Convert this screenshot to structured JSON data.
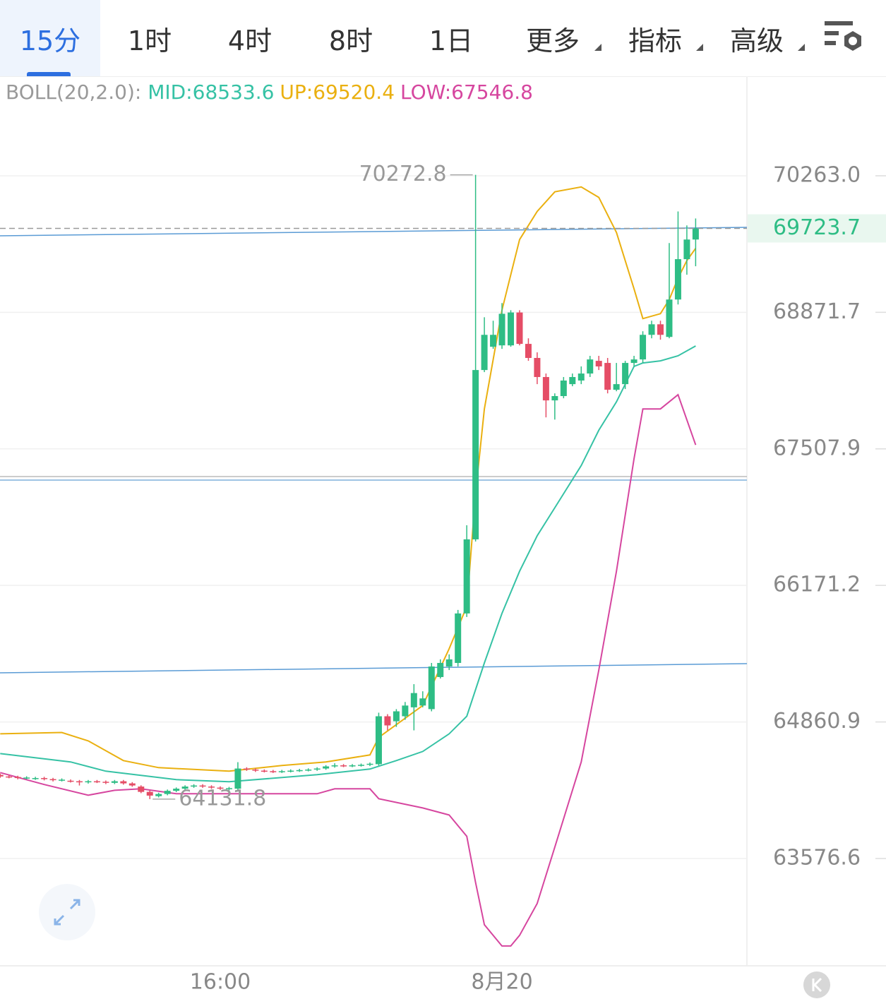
{
  "tabs": [
    "15分",
    "1时",
    "4时",
    "8时",
    "1日",
    "更多",
    "指标",
    "高级"
  ],
  "chart_data": {
    "type": "candlestick",
    "indicator": "BOLL(20,2.0):",
    "categories": [
      null,
      null,
      null,
      null,
      null,
      null,
      null,
      null,
      null,
      null,
      null,
      null,
      null,
      null,
      null,
      null,
      null,
      null,
      null,
      null,
      null,
      null,
      null,
      null,
      null,
      "16:00",
      null,
      null,
      null,
      null,
      null,
      null,
      null,
      null,
      null,
      null,
      null,
      null,
      null,
      null,
      null,
      null,
      null,
      null,
      null,
      null,
      null,
      null,
      null,
      null,
      null,
      null,
      null,
      null,
      null,
      null,
      null,
      "8月20",
      null,
      null,
      null,
      null,
      null,
      null,
      null,
      null,
      null,
      null,
      null,
      null,
      null,
      null,
      null,
      null,
      null,
      null,
      null,
      null,
      null,
      null
    ],
    "open": [
      64360,
      64345,
      64340,
      64330,
      64325,
      64330,
      64320,
      64310,
      64305,
      64300,
      64290,
      64300,
      64295,
      64285,
      64300,
      64280,
      64250,
      64200,
      64160,
      64180,
      64210,
      64230,
      64250,
      64260,
      64250,
      64240,
      64225,
      64230,
      64420,
      64410,
      64400,
      64395,
      64390,
      64395,
      64400,
      64405,
      64410,
      64420,
      64440,
      64450,
      64445,
      64450,
      64455,
      64461,
      64915,
      64868,
      64915,
      65000,
      65017,
      64983,
      65289,
      65390,
      65424,
      65900,
      66619,
      68292,
      68525,
      68539,
      68539,
      68870,
      68554,
      68413,
      68222,
      67989,
      68032,
      68151,
      68187,
      68257,
      68384,
      68363,
      68095,
      68151,
      68363,
      68398,
      68645,
      68751,
      68624,
      69001,
      69410,
      69610
    ],
    "high": [
      64372,
      64357,
      64352,
      64347,
      64342,
      64342,
      64332,
      64327,
      64317,
      64312,
      64312,
      64312,
      64307,
      64312,
      64312,
      64292,
      64262,
      64212,
      64192,
      64222,
      64242,
      64262,
      64272,
      64272,
      64262,
      64252,
      64247,
      64480,
      64432,
      64422,
      64412,
      64407,
      64407,
      64412,
      64417,
      64422,
      64432,
      64452,
      64470,
      64462,
      64462,
      64467,
      64477,
      64949,
      64935,
      64983,
      65051,
      65221,
      65153,
      65424,
      65458,
      65506,
      65934,
      66757,
      70272.8,
      68822,
      68787,
      68965,
      68893,
      68893,
      68610,
      68469,
      68257,
      68059,
      68222,
      68257,
      68328,
      68434,
      68434,
      68413,
      68363,
      68384,
      68434,
      68681,
      68787,
      68787,
      69574,
      69897,
      69754,
      69825
    ],
    "low": [
      64333,
      64328,
      64318,
      64318,
      64313,
      64308,
      64298,
      64298,
      64288,
      64260,
      64278,
      64283,
      64273,
      64273,
      64268,
      64248,
      64188,
      64131.8,
      64148,
      64168,
      64198,
      64218,
      64238,
      64238,
      64228,
      64218,
      64213,
      64218,
      64398,
      64388,
      64383,
      64378,
      64378,
      64383,
      64388,
      64393,
      64398,
      64408,
      64428,
      64433,
      64433,
      64438,
      64443,
      64448,
      64781,
      64814,
      64881,
      64781,
      65000,
      64962,
      65275,
      65356,
      65390,
      65866,
      66598,
      68271,
      68504,
      68504,
      68525,
      68539,
      68384,
      68151,
      67820,
      67798,
      68010,
      68130,
      68151,
      68222,
      68292,
      68059,
      68080,
      68102,
      68328,
      68363,
      68610,
      68596,
      68610,
      68951,
      69252,
      69338
    ],
    "close": [
      64345,
      64340,
      64330,
      64335,
      64330,
      64320,
      64310,
      64315,
      64300,
      64290,
      64300,
      64295,
      64285,
      64300,
      64280,
      64260,
      64200,
      64165,
      64180,
      64210,
      64230,
      64250,
      64260,
      64250,
      64240,
      64230,
      64235,
      64420,
      64410,
      64400,
      64395,
      64390,
      64395,
      64400,
      64405,
      64410,
      64420,
      64440,
      64450,
      64445,
      64450,
      64455,
      64465,
      64915,
      64828,
      64962,
      65017,
      65136,
      65085,
      65390,
      65424,
      65458,
      65900,
      66619,
      68292,
      68645,
      68645,
      68857,
      68870,
      68554,
      68413,
      68222,
      67989,
      68032,
      68187,
      68222,
      68257,
      68398,
      68328,
      68095,
      68151,
      68363,
      68398,
      68645,
      68751,
      68645,
      69001,
      69410,
      69610,
      69723.7
    ],
    "up_color": "#2ebd85",
    "down_color": "#e54d66",
    "series": [
      {
        "name": "MID:",
        "color": "#36c2a5",
        "x": [
          0,
          8,
          12,
          20,
          26,
          36,
          42,
          45,
          48,
          51,
          53,
          55,
          57,
          59,
          61,
          63,
          66,
          68,
          70,
          72,
          73,
          75,
          77,
          79
        ],
        "values": [
          64561,
          64482,
          64395,
          64315,
          64295,
          64362,
          64415,
          64495,
          64581,
          64748,
          64915,
          65424,
          65900,
          66309,
          66654,
          66929,
          67343,
          67692,
          67974,
          68328,
          68363,
          68384,
          68434,
          68533.6
        ]
      },
      {
        "name": "UP:",
        "color": "#eab010",
        "x": [
          0,
          7,
          10,
          14,
          18,
          26,
          32,
          37,
          42,
          43,
          48,
          51,
          53,
          54,
          55,
          56,
          57,
          58,
          59,
          61,
          63,
          66,
          68,
          70,
          72,
          73,
          75,
          76,
          77,
          78,
          79
        ],
        "values": [
          64748,
          64761,
          64681,
          64495,
          64428,
          64395,
          64448,
          64482,
          64548,
          64715,
          65017,
          65560,
          65968,
          67067,
          67904,
          68398,
          68893,
          69252,
          69610,
          69897,
          70098,
          70148,
          70041,
          69682,
          69108,
          68808,
          68858,
          69001,
          69216,
          69395,
          69520.4
        ]
      },
      {
        "name": "LOW:",
        "color": "#d6469f",
        "x": [
          0,
          5,
          10,
          13,
          16,
          20,
          26,
          36,
          38,
          42,
          43,
          48,
          51,
          53,
          54,
          55,
          57,
          58,
          59,
          61,
          63,
          66,
          68,
          70,
          72,
          73,
          75,
          77,
          79
        ],
        "values": [
          64382,
          64269,
          64169,
          64215,
          64229,
          64182,
          64182,
          64182,
          64229,
          64229,
          64136,
          64049,
          63983,
          63783,
          63355,
          62963,
          62767,
          62767,
          62865,
          63159,
          63683,
          64482,
          65356,
          66309,
          67411,
          67904,
          67904,
          68045,
          67546.8
        ]
      }
    ],
    "log": true,
    "ylim": [
      62585,
      71280
    ],
    "yticks": [
      {
        "value": 70263,
        "label": "70263.0"
      },
      68871.7,
      67507.9,
      66171.2,
      64860.9,
      63576.6
    ],
    "grid": true
  }
}
